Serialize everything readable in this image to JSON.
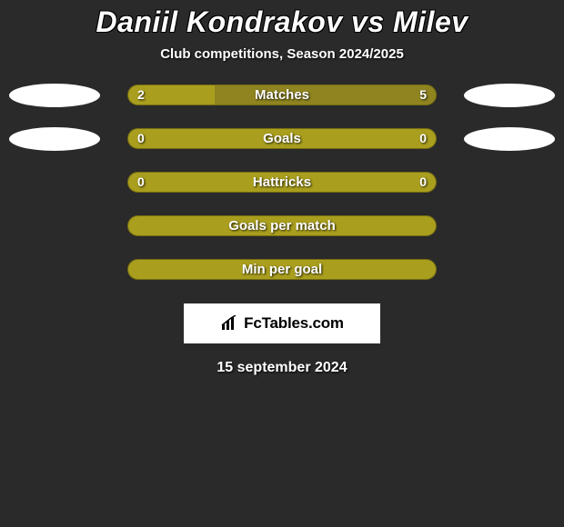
{
  "header": {
    "title": "Daniil Kondrakov vs Milev",
    "subtitle": "Club competitions, Season 2024/2025"
  },
  "rows": [
    {
      "label": "Matches",
      "left_value": "2",
      "right_value": "5",
      "show_ellipses": true,
      "left_fill_pct": 28,
      "full_fill": false,
      "show_values": true,
      "fill_color": "#a99e1e",
      "base_color": "#8f8420"
    },
    {
      "label": "Goals",
      "left_value": "0",
      "right_value": "0",
      "show_ellipses": true,
      "left_fill_pct": 0,
      "full_fill": true,
      "show_values": true,
      "fill_color": "#a99e1e",
      "base_color": "#8f8420"
    },
    {
      "label": "Hattricks",
      "left_value": "0",
      "right_value": "0",
      "show_ellipses": false,
      "left_fill_pct": 0,
      "full_fill": true,
      "show_values": true,
      "fill_color": "#a99e1e",
      "base_color": "#8f8420"
    },
    {
      "label": "Goals per match",
      "left_value": "",
      "right_value": "",
      "show_ellipses": false,
      "left_fill_pct": 0,
      "full_fill": true,
      "show_values": false,
      "fill_color": "#a99e1e",
      "base_color": "#8f8420"
    },
    {
      "label": "Min per goal",
      "left_value": "",
      "right_value": "",
      "show_ellipses": false,
      "left_fill_pct": 0,
      "full_fill": true,
      "show_values": false,
      "fill_color": "#a99e1e",
      "base_color": "#8f8420"
    }
  ],
  "colors": {
    "page_bg": "#2a2a2a",
    "bar_border": "#766d10",
    "ellipse": "#ffffff",
    "text": "#ffffff"
  },
  "brand": {
    "name": "FcTables.com",
    "icon": "bar-chart-icon"
  },
  "date": "15 september 2024"
}
